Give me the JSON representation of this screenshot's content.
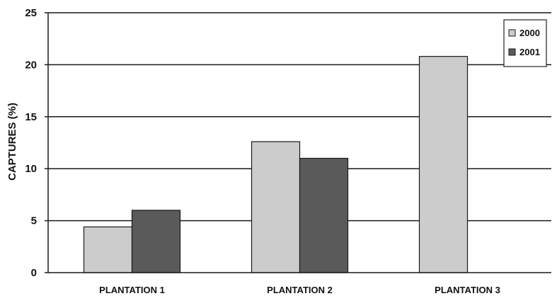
{
  "chart_data": {
    "type": "bar",
    "title": "",
    "xlabel": "",
    "ylabel": "CAPTURES (%)",
    "ylim": [
      0,
      25
    ],
    "yticks": [
      0,
      5,
      10,
      15,
      20,
      25
    ],
    "grid": true,
    "legend_position": "top-right",
    "categories": [
      "PLANTATION 1",
      "PLANTATION  2",
      "PLANTATION  3"
    ],
    "series": [
      {
        "name": "2000",
        "color": "#cccccc",
        "values": [
          4.4,
          12.6,
          20.8
        ]
      },
      {
        "name": "2001",
        "color": "#5a5a5a",
        "values": [
          6.0,
          11.0,
          null
        ]
      }
    ]
  }
}
